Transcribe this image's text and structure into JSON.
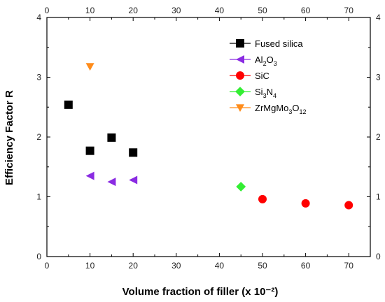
{
  "chart_data": {
    "type": "scatter",
    "title": "",
    "xlabel": "Volume fraction of filler (x 10⁻²)",
    "ylabel": "Efficiency Factor R",
    "xlim": [
      0,
      75
    ],
    "ylim": [
      0,
      4
    ],
    "x_ticks": [
      "0",
      "10",
      "20",
      "30",
      "40",
      "50",
      "60",
      "70"
    ],
    "y_ticks": [
      "0",
      "1",
      "2",
      "3",
      "4"
    ],
    "top_axis_ticks": true,
    "right_axis_ticks": true,
    "grid": false,
    "legend_position": "top-right",
    "series": [
      {
        "name": "Fused silica",
        "name_parts": [
          {
            "t": "Fused silica",
            "s": ""
          }
        ],
        "marker": "square",
        "color": "#000000",
        "points": [
          {
            "x": 5,
            "y": 2.54
          },
          {
            "x": 10,
            "y": 1.77
          },
          {
            "x": 15,
            "y": 1.99
          },
          {
            "x": 20,
            "y": 1.74
          }
        ]
      },
      {
        "name": "Al2O3",
        "name_parts": [
          {
            "t": "Al",
            "s": ""
          },
          {
            "t": "2",
            "s": "sub"
          },
          {
            "t": "O",
            "s": ""
          },
          {
            "t": "3",
            "s": "sub"
          }
        ],
        "marker": "triangle-left",
        "color": "#8a2be2",
        "points": [
          {
            "x": 10,
            "y": 1.35
          },
          {
            "x": 15,
            "y": 1.25
          },
          {
            "x": 20,
            "y": 1.28
          }
        ]
      },
      {
        "name": "SiC",
        "name_parts": [
          {
            "t": "SiC",
            "s": ""
          }
        ],
        "marker": "circle",
        "color": "#ff0000",
        "points": [
          {
            "x": 50,
            "y": 0.96
          },
          {
            "x": 60,
            "y": 0.89
          },
          {
            "x": 70,
            "y": 0.86
          }
        ]
      },
      {
        "name": "Si3N4",
        "name_parts": [
          {
            "t": "Si",
            "s": ""
          },
          {
            "t": "3",
            "s": "sub"
          },
          {
            "t": "N",
            "s": ""
          },
          {
            "t": "4",
            "s": "sub"
          }
        ],
        "marker": "diamond",
        "color": "#33ee33",
        "points": [
          {
            "x": 45,
            "y": 1.17
          }
        ]
      },
      {
        "name": "ZrMgMo3O12",
        "name_parts": [
          {
            "t": "ZrMgMo",
            "s": ""
          },
          {
            "t": "3",
            "s": "sub"
          },
          {
            "t": "O",
            "s": ""
          },
          {
            "t": "12",
            "s": "sub"
          }
        ],
        "marker": "triangle-down",
        "color": "#ff8c1a",
        "points": [
          {
            "x": 10,
            "y": 3.18
          }
        ]
      }
    ]
  }
}
